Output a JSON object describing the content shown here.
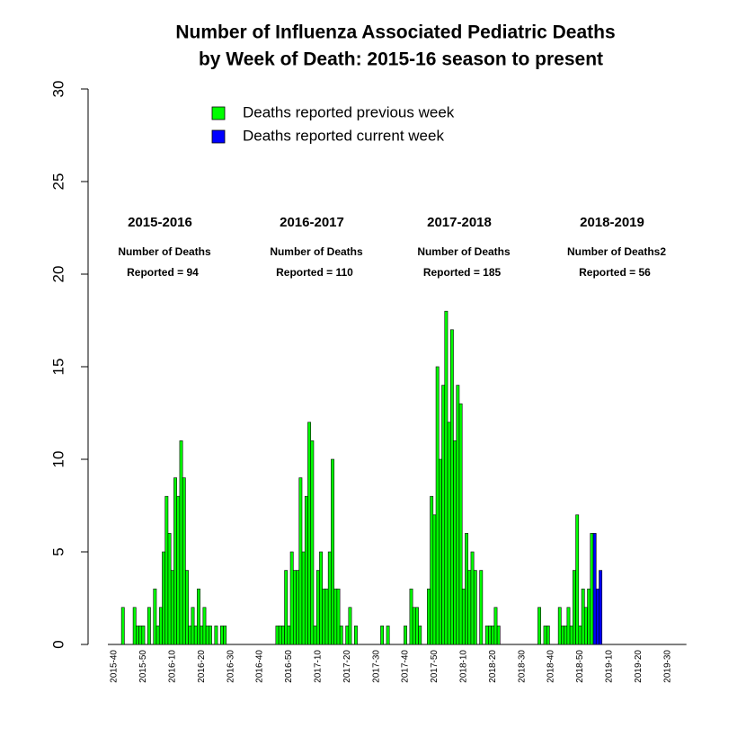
{
  "chart_data": {
    "type": "bar",
    "title": [
      "Number of Influenza Associated Pediatric Deaths",
      "by Week of Death: 2015-16 season to present"
    ],
    "categories": [
      "2015-40",
      null,
      null,
      null,
      null,
      null,
      null,
      null,
      null,
      null,
      "2015-50",
      null,
      null,
      null,
      null,
      null,
      null,
      null,
      null,
      null,
      "2016-10",
      null,
      null,
      null,
      null,
      null,
      null,
      null,
      null,
      null,
      "2016-20",
      null,
      null,
      null,
      null,
      null,
      null,
      null,
      null,
      null,
      "2016-30",
      null,
      null,
      null,
      null,
      null,
      null,
      null,
      null,
      null,
      "2016-40",
      null,
      null,
      null,
      null,
      null,
      null,
      null,
      null,
      null,
      "2016-50",
      null,
      null,
      null,
      null,
      null,
      null,
      null,
      null,
      null,
      "2017-10",
      null,
      null,
      null,
      null,
      null,
      null,
      null,
      null,
      null,
      "2017-20",
      null,
      null,
      null,
      null,
      null,
      null,
      null,
      null,
      null,
      "2017-30",
      null,
      null,
      null,
      null,
      null,
      null,
      null,
      null,
      null,
      "2017-40",
      null,
      null,
      null,
      null,
      null,
      null,
      null,
      null,
      null,
      "2017-50",
      null,
      null,
      null,
      null,
      null,
      null,
      null,
      null,
      null,
      "2018-10",
      null,
      null,
      null,
      null,
      null,
      null,
      null,
      null,
      null,
      "2018-20",
      null,
      null,
      null,
      null,
      null,
      null,
      null,
      null,
      null,
      "2018-30",
      null,
      null,
      null,
      null,
      null,
      null,
      null,
      null,
      null,
      "2018-40",
      null,
      null,
      null,
      null,
      null,
      null,
      null,
      null,
      null,
      "2018-50",
      null,
      null,
      null,
      null,
      null,
      null,
      null,
      null,
      null,
      "2019-10",
      null,
      null,
      null,
      null,
      null,
      null,
      null,
      null,
      null,
      "2019-20",
      null,
      null,
      null,
      null,
      null,
      null,
      null,
      null,
      null,
      "2019-30",
      null,
      null,
      null,
      null,
      null,
      null
    ],
    "series": [
      {
        "name": "Deaths reported previous week",
        "color": "#00ff00",
        "values": [
          0,
          0,
          0,
          2,
          0,
          0,
          0,
          2,
          1,
          1,
          1,
          0,
          2,
          0,
          3,
          1,
          2,
          5,
          8,
          6,
          4,
          9,
          8,
          11,
          9,
          4,
          1,
          2,
          1,
          3,
          1,
          2,
          1,
          1,
          0,
          1,
          0,
          1,
          1,
          0,
          0,
          0,
          0,
          0,
          0,
          0,
          0,
          0,
          0,
          0,
          0,
          0,
          0,
          0,
          0,
          0,
          1,
          1,
          1,
          4,
          1,
          5,
          4,
          4,
          9,
          5,
          8,
          12,
          11,
          1,
          4,
          5,
          3,
          3,
          5,
          10,
          3,
          3,
          1,
          0,
          1,
          2,
          0,
          1,
          0,
          0,
          0,
          0,
          0,
          0,
          0,
          0,
          1,
          0,
          1,
          0,
          0,
          0,
          0,
          0,
          1,
          0,
          3,
          2,
          2,
          1,
          0,
          0,
          3,
          8,
          7,
          15,
          10,
          14,
          18,
          12,
          17,
          11,
          14,
          13,
          3,
          6,
          4,
          5,
          4,
          0,
          4,
          0,
          1,
          1,
          1,
          2,
          1,
          0,
          0,
          0,
          0,
          0,
          0,
          0,
          0,
          0,
          0,
          0,
          0,
          0,
          2,
          0,
          1,
          1,
          0,
          0,
          0,
          2,
          1,
          1,
          2,
          1,
          4,
          7,
          1,
          3,
          2,
          3,
          6,
          0,
          0,
          0,
          0,
          0,
          0,
          0,
          0,
          0,
          0,
          0,
          0,
          0,
          0,
          0,
          0,
          0,
          0,
          0,
          0,
          0,
          0,
          0,
          0,
          0,
          0,
          0,
          0,
          0,
          0,
          0,
          0
        ]
      },
      {
        "name": "Deaths reported current week",
        "color": "#0000ff",
        "values": [
          0,
          0,
          0,
          0,
          0,
          0,
          0,
          0,
          0,
          0,
          0,
          0,
          0,
          0,
          0,
          0,
          0,
          0,
          0,
          0,
          0,
          0,
          0,
          0,
          0,
          0,
          0,
          0,
          0,
          0,
          0,
          0,
          0,
          0,
          0,
          0,
          0,
          0,
          0,
          0,
          0,
          0,
          0,
          0,
          0,
          0,
          0,
          0,
          0,
          0,
          0,
          0,
          0,
          0,
          0,
          0,
          0,
          0,
          0,
          0,
          0,
          0,
          0,
          0,
          0,
          0,
          0,
          0,
          0,
          0,
          0,
          0,
          0,
          0,
          0,
          0,
          0,
          0,
          0,
          0,
          0,
          0,
          0,
          0,
          0,
          0,
          0,
          0,
          0,
          0,
          0,
          0,
          0,
          0,
          0,
          0,
          0,
          0,
          0,
          0,
          0,
          0,
          0,
          0,
          0,
          0,
          0,
          0,
          0,
          0,
          0,
          0,
          0,
          0,
          0,
          0,
          0,
          0,
          0,
          0,
          0,
          0,
          0,
          0,
          0,
          0,
          0,
          0,
          0,
          0,
          0,
          0,
          0,
          0,
          0,
          0,
          0,
          0,
          0,
          0,
          0,
          0,
          0,
          0,
          0,
          0,
          0,
          0,
          0,
          0,
          0,
          0,
          0,
          0,
          0,
          0,
          0,
          0,
          0,
          0,
          0,
          0,
          0,
          0,
          0,
          6,
          3,
          4,
          0,
          0,
          0,
          0,
          0,
          0,
          0,
          0,
          0,
          0,
          0,
          0,
          0,
          0,
          0,
          0,
          0,
          0,
          0,
          0,
          0,
          0,
          0,
          0,
          0,
          0,
          0,
          0,
          0
        ]
      }
    ],
    "ylim": [
      0,
      30
    ],
    "yticks": [
      0,
      5,
      10,
      15,
      20,
      25,
      30
    ],
    "grid": false,
    "legend": "top",
    "annotations": [
      {
        "season": "2015-2016",
        "line1": "Number of Deaths",
        "line2": "Reported = 94"
      },
      {
        "season": "2016-2017",
        "line1": "Number of Deaths",
        "line2": "Reported = 110"
      },
      {
        "season": "2017-2018",
        "line1": "Number of Deaths",
        "line2": "Reported = 185"
      },
      {
        "season": "2018-2019",
        "line1": "Number of Deaths2",
        "line2": "Reported = 56"
      }
    ]
  }
}
